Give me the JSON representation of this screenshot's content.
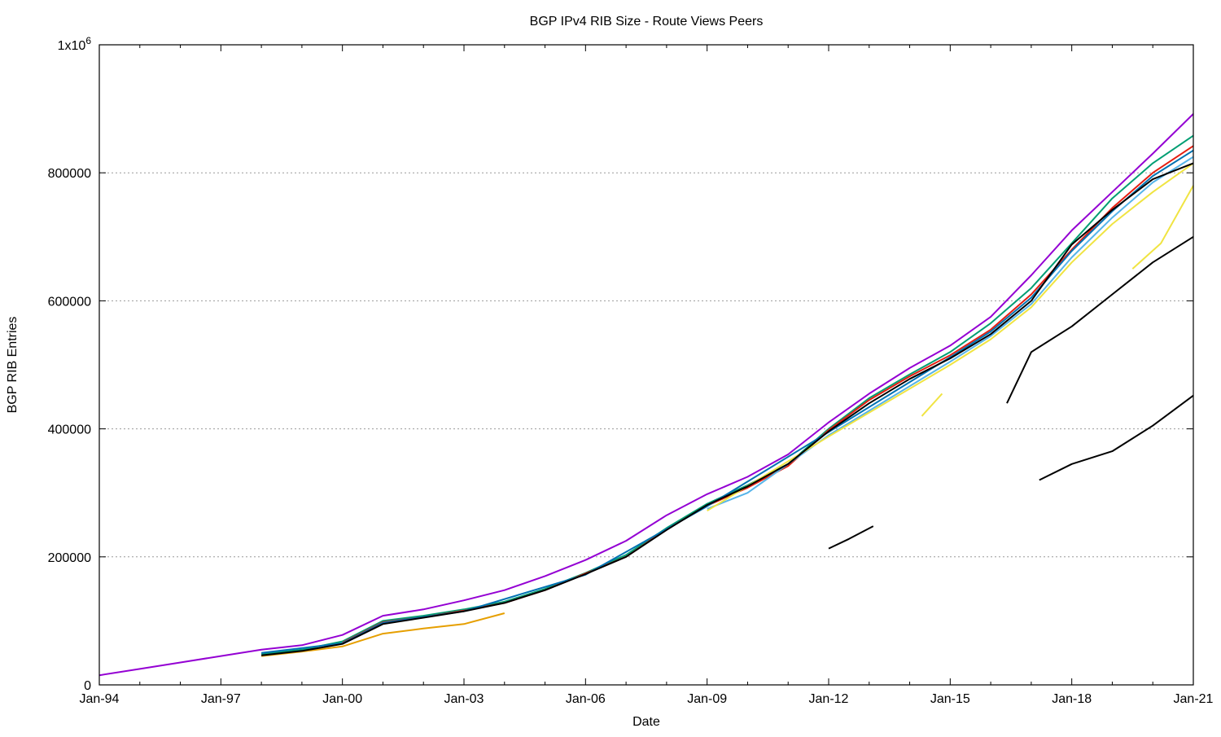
{
  "chart_data": {
    "type": "line",
    "title": "BGP IPv4 RIB Size - Route Views Peers",
    "xlabel": "Date",
    "ylabel": "BGP RIB Entries",
    "xlim": [
      1994,
      2021
    ],
    "ylim": [
      0,
      1000000
    ],
    "grid": "horizontal dotted",
    "legend": "none",
    "x_ticks": [
      {
        "value": 1994,
        "label": "Jan-94"
      },
      {
        "value": 1997,
        "label": "Jan-97"
      },
      {
        "value": 2000,
        "label": "Jan-00"
      },
      {
        "value": 2003,
        "label": "Jan-03"
      },
      {
        "value": 2006,
        "label": "Jan-06"
      },
      {
        "value": 2009,
        "label": "Jan-09"
      },
      {
        "value": 2012,
        "label": "Jan-12"
      },
      {
        "value": 2015,
        "label": "Jan-15"
      },
      {
        "value": 2018,
        "label": "Jan-18"
      },
      {
        "value": 2021,
        "label": "Jan-21"
      }
    ],
    "y_ticks": [
      {
        "value": 0,
        "label": "0"
      },
      {
        "value": 200000,
        "label": "200000"
      },
      {
        "value": 400000,
        "label": "400000"
      },
      {
        "value": 600000,
        "label": "600000"
      },
      {
        "value": 800000,
        "label": "800000"
      },
      {
        "value": 1000000,
        "label": "1x10",
        "sup": "6"
      }
    ],
    "series": [
      {
        "name": "peer-purple-top",
        "color": "#9400d3",
        "x": [
          1994,
          1995,
          1996,
          1997,
          1998,
          1999,
          2000,
          2001,
          2002,
          2003,
          2004,
          2005,
          2006,
          2007,
          2008,
          2009,
          2010,
          2011,
          2012,
          2013,
          2014,
          2015,
          2016,
          2017,
          2018,
          2019,
          2020,
          2021
        ],
        "y": [
          15000,
          25000,
          35000,
          45000,
          55000,
          62000,
          78000,
          108000,
          118000,
          132000,
          148000,
          170000,
          195000,
          225000,
          265000,
          298000,
          325000,
          360000,
          410000,
          455000,
          495000,
          530000,
          575000,
          640000,
          710000,
          770000,
          830000,
          892000
        ]
      },
      {
        "name": "peer-teal",
        "color": "#009e73",
        "x": [
          1998,
          1999,
          2000,
          2001,
          2002,
          2003,
          2004,
          2005,
          2006,
          2007,
          2008,
          2009,
          2010,
          2011,
          2012,
          2013,
          2014,
          2015,
          2016,
          2017,
          2018,
          2019,
          2020,
          2021
        ],
        "y": [
          48000,
          55000,
          68000,
          100000,
          108000,
          118000,
          130000,
          150000,
          175000,
          203000,
          245000,
          283000,
          312000,
          345000,
          400000,
          448000,
          485000,
          520000,
          565000,
          620000,
          690000,
          760000,
          815000,
          858000
        ]
      },
      {
        "name": "peer-red",
        "color": "#e51e10",
        "x": [
          2000,
          2001,
          2002,
          2003,
          2004,
          2005,
          2006,
          2007,
          2008,
          2009,
          2010,
          2011,
          2012,
          2013,
          2014,
          2015,
          2016,
          2017,
          2018,
          2019,
          2020,
          2021
        ],
        "y": [
          66000,
          98000,
          106000,
          116000,
          128000,
          148000,
          174000,
          200000,
          243000,
          280000,
          308000,
          342000,
          398000,
          445000,
          482000,
          515000,
          555000,
          610000,
          680000,
          745000,
          800000,
          842000
        ]
      },
      {
        "name": "peer-blue",
        "color": "#0072b2",
        "x": [
          1998,
          2000,
          2001,
          2003,
          2006,
          2009,
          2012,
          2015,
          2016,
          2017,
          2018,
          2019,
          2020,
          2021
        ],
        "y": [
          50000,
          65000,
          97000,
          115000,
          172000,
          279000,
          395000,
          512000,
          552000,
          605000,
          678000,
          740000,
          795000,
          835000
        ]
      },
      {
        "name": "peer-lightblue",
        "color": "#56b4e9",
        "x": [
          2009,
          2010,
          2012,
          2015,
          2016,
          2017,
          2018,
          2019,
          2020,
          2021
        ],
        "y": [
          275000,
          300000,
          390000,
          505000,
          545000,
          595000,
          668000,
          730000,
          785000,
          825000
        ]
      },
      {
        "name": "peer-yellow",
        "color": "#f0e442",
        "x": [
          2009,
          2012,
          2015,
          2016,
          2017,
          2018,
          2019,
          2020,
          2021
        ],
        "y": [
          272000,
          388000,
          500000,
          540000,
          590000,
          660000,
          720000,
          770000,
          815000
        ]
      },
      {
        "name": "peer-orange",
        "color": "#e69f00",
        "x": [
          1998,
          1999,
          2000,
          2001,
          2002,
          2003,
          2004
        ],
        "y": [
          45000,
          52000,
          60000,
          80000,
          88000,
          95000,
          112000
        ]
      },
      {
        "name": "peer-black-main",
        "color": "#000000",
        "x": [
          1998,
          1999,
          2000,
          2001,
          2002,
          2003,
          2004,
          2005,
          2006,
          2007,
          2008,
          2009,
          2010,
          2011,
          2012,
          2013,
          2014,
          2015,
          2016,
          2017,
          2018,
          2019,
          2020,
          2021
        ],
        "y": [
          46000,
          53000,
          64000,
          95000,
          105000,
          115000,
          128000,
          148000,
          173000,
          200000,
          242000,
          281000,
          310000,
          345000,
          396000,
          440000,
          478000,
          510000,
          548000,
          600000,
          688000,
          742000,
          790000,
          815000
        ]
      },
      {
        "name": "peer-black-low-2012",
        "color": "#000000",
        "x": [
          2012,
          2012.5,
          2013.1
        ],
        "y": [
          213000,
          228000,
          248000
        ]
      },
      {
        "name": "peer-black-low-2016",
        "color": "#000000",
        "x": [
          2016.4,
          2017,
          2018,
          2019,
          2020,
          2021
        ],
        "y": [
          440000,
          520000,
          560000,
          610000,
          660000,
          700000
        ]
      },
      {
        "name": "peer-black-low-2017",
        "color": "#000000",
        "x": [
          2017.2,
          2018,
          2019,
          2020,
          2021
        ],
        "y": [
          320000,
          345000,
          365000,
          405000,
          452000
        ]
      },
      {
        "name": "peer-yellow-low-2014",
        "color": "#f0e442",
        "x": [
          2014.3,
          2014.8
        ],
        "y": [
          420000,
          455000
        ]
      },
      {
        "name": "peer-yellow-low-2019",
        "color": "#f0e442",
        "x": [
          2019.5,
          2020.2,
          2021
        ],
        "y": [
          650000,
          690000,
          780000
        ]
      }
    ]
  }
}
